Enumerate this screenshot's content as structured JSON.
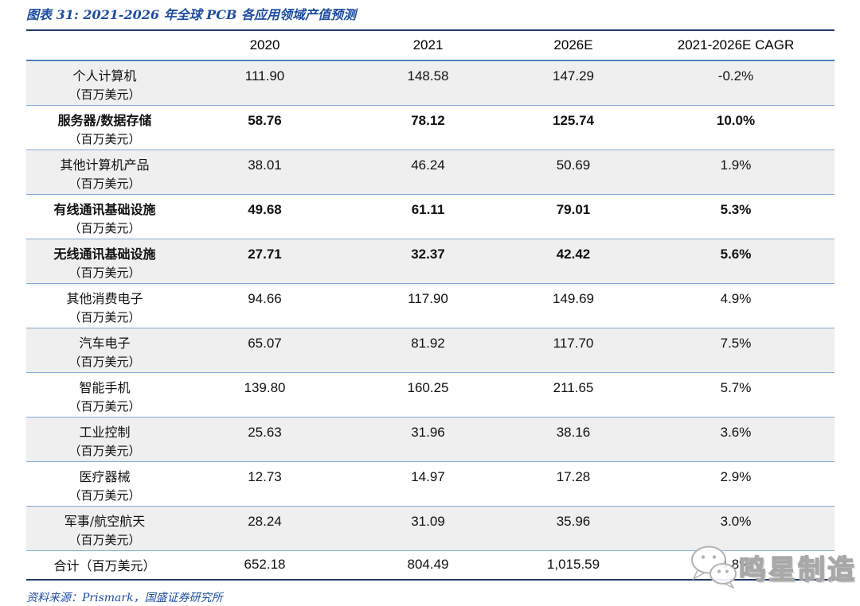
{
  "title": "图表 31: 2021-2026 年全球 PCB 各应用领域产值预测",
  "table": {
    "columns": [
      "",
      "2020",
      "2021",
      "2026E",
      "2021-2026E CAGR"
    ],
    "unit_label": "（百万美元）",
    "rows": [
      {
        "category": "个人计算机",
        "bold": false,
        "values": [
          "111.90",
          "148.58",
          "147.29",
          "-0.2%"
        ]
      },
      {
        "category": "服务器/数据存储",
        "bold": true,
        "values": [
          "58.76",
          "78.12",
          "125.74",
          "10.0%"
        ]
      },
      {
        "category": "其他计算机产品",
        "bold": false,
        "values": [
          "38.01",
          "46.24",
          "50.69",
          "1.9%"
        ]
      },
      {
        "category": "有线通讯基础设施",
        "bold": true,
        "values": [
          "49.68",
          "61.11",
          "79.01",
          "5.3%"
        ]
      },
      {
        "category": "无线通讯基础设施",
        "bold": true,
        "values": [
          "27.71",
          "32.37",
          "42.42",
          "5.6%"
        ]
      },
      {
        "category": "其他消费电子",
        "bold": false,
        "values": [
          "94.66",
          "117.90",
          "149.69",
          "4.9%"
        ]
      },
      {
        "category": "汽车电子",
        "bold": false,
        "values": [
          "65.07",
          "81.92",
          "117.70",
          "7.5%"
        ]
      },
      {
        "category": "智能手机",
        "bold": false,
        "values": [
          "139.80",
          "160.25",
          "211.65",
          "5.7%"
        ]
      },
      {
        "category": "工业控制",
        "bold": false,
        "values": [
          "25.63",
          "31.96",
          "38.16",
          "3.6%"
        ]
      },
      {
        "category": "医疗器械",
        "bold": false,
        "values": [
          "12.73",
          "14.97",
          "17.28",
          "2.9%"
        ]
      },
      {
        "category": "军事/航空航天",
        "bold": false,
        "values": [
          "28.24",
          "31.09",
          "35.96",
          "3.0%"
        ]
      }
    ],
    "total": {
      "label": "合计（百万美元）",
      "values": [
        "652.18",
        "804.49",
        "1,015.59",
        "4.8%"
      ]
    }
  },
  "source": "资料来源：Prismark，国盛证券研究所",
  "watermark": {
    "icon": "wechat-icon",
    "text": "鸣星制造"
  },
  "colors": {
    "title_blue": "#1e4ca1",
    "border_navy": "#203a66",
    "header_line_blue": "#4e81bd",
    "row_line_blue": "#84a7d3",
    "row_shade_gray": "#efefef",
    "watermark_gray": "#a8a8a8"
  }
}
